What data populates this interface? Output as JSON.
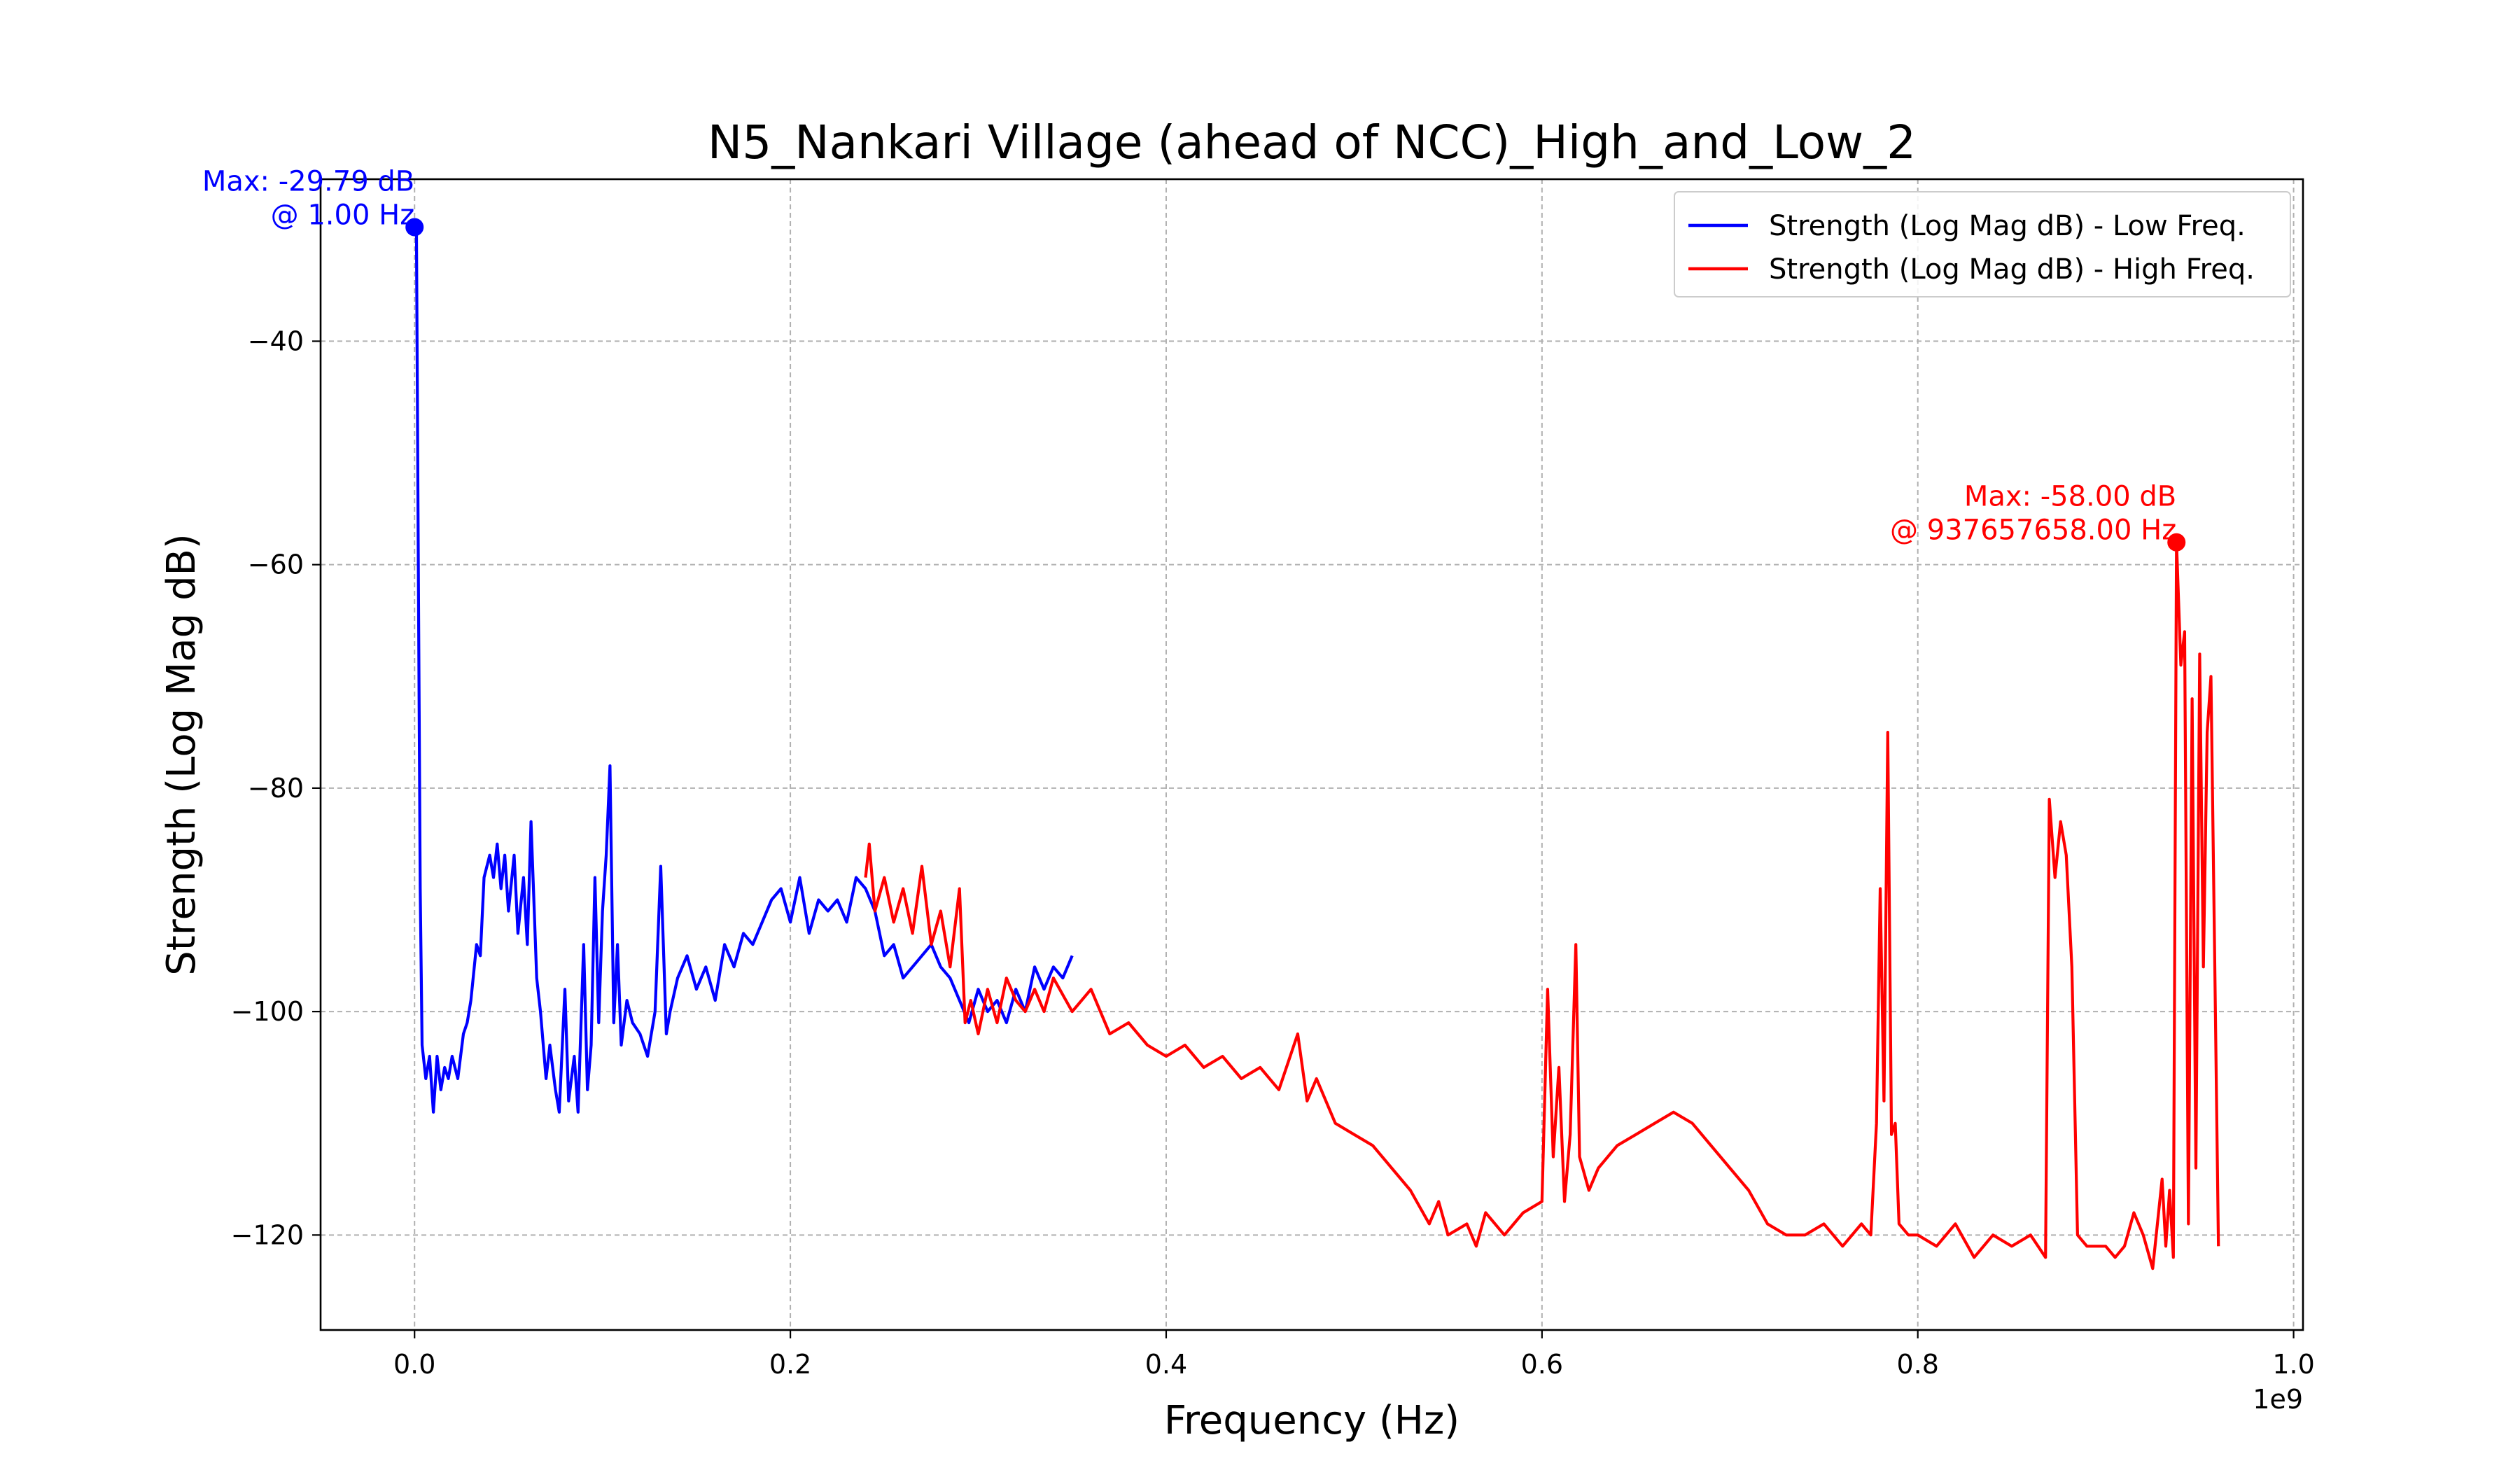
{
  "chart_data": {
    "type": "line",
    "title": "N5_Nankari Village (ahead of NCC)_High_and_Low_2",
    "xlabel": "Frequency (Hz)",
    "ylabel": "Strength (Log Mag dB)",
    "x_offset_label": "1e9",
    "x_scale": 1000000000,
    "xlim": [
      -0.05,
      1.005
    ],
    "ylim": [
      -128.5,
      -25.5
    ],
    "xticks": [
      0.0,
      0.2,
      0.4,
      0.6,
      0.8,
      1.0
    ],
    "xtick_labels": [
      "0.0",
      "0.2",
      "0.4",
      "0.6",
      "0.8",
      "1.0"
    ],
    "yticks": [
      -40,
      -60,
      -80,
      -100,
      -120
    ],
    "ytick_labels": [
      "−40",
      "−60",
      "−80",
      "−100",
      "−120"
    ],
    "grid": true,
    "legend_position": "top-right",
    "series": [
      {
        "name": "Strength (Log Mag dB) - Low Freq.",
        "color": "#0000ff",
        "x": [
          0.0,
          0.001,
          0.002,
          0.003,
          0.004,
          0.006,
          0.008,
          0.01,
          0.012,
          0.014,
          0.016,
          0.018,
          0.02,
          0.023,
          0.026,
          0.028,
          0.03,
          0.033,
          0.035,
          0.037,
          0.04,
          0.042,
          0.044,
          0.046,
          0.048,
          0.05,
          0.053,
          0.055,
          0.058,
          0.06,
          0.062,
          0.065,
          0.067,
          0.07,
          0.072,
          0.075,
          0.077,
          0.08,
          0.082,
          0.085,
          0.087,
          0.09,
          0.092,
          0.094,
          0.096,
          0.098,
          0.1,
          0.102,
          0.104,
          0.106,
          0.108,
          0.11,
          0.113,
          0.116,
          0.12,
          0.124,
          0.128,
          0.131,
          0.134,
          0.136,
          0.14,
          0.145,
          0.15,
          0.155,
          0.16,
          0.165,
          0.17,
          0.175,
          0.18,
          0.185,
          0.19,
          0.195,
          0.2,
          0.205,
          0.21,
          0.215,
          0.22,
          0.225,
          0.23,
          0.235,
          0.24,
          0.245,
          0.25,
          0.255,
          0.26,
          0.265,
          0.27,
          0.275,
          0.28,
          0.285,
          0.29,
          0.295,
          0.3,
          0.305,
          0.31,
          0.315,
          0.32,
          0.325,
          0.33,
          0.335,
          0.34,
          0.345,
          0.35
        ],
        "values": [
          -29.79,
          -29.8,
          -60,
          -89,
          -103,
          -106,
          -104,
          -109,
          -104,
          -107,
          -105,
          -106,
          -104,
          -106,
          -102,
          -101,
          -99,
          -94,
          -95,
          -88,
          -86,
          -88,
          -85,
          -89,
          -86,
          -91,
          -86,
          -93,
          -88,
          -94,
          -83,
          -97,
          -100,
          -106,
          -103,
          -107,
          -109,
          -98,
          -108,
          -104,
          -109,
          -94,
          -107,
          -103,
          -88,
          -101,
          -91,
          -86,
          -78,
          -101,
          -94,
          -103,
          -99,
          -101,
          -102,
          -104,
          -100,
          -87,
          -102,
          -100,
          -97,
          -95,
          -98,
          -96,
          -99,
          -94,
          -96,
          -93,
          -94,
          -92,
          -90,
          -89,
          -92,
          -88,
          -93,
          -90,
          -91,
          -90,
          -92,
          -88,
          -89,
          -91,
          -95,
          -94,
          -97,
          -96,
          -95,
          -94,
          -96,
          -97,
          -99,
          -101,
          -98,
          -100,
          -99,
          -101,
          -98,
          -100,
          -96,
          -98,
          -96,
          -97,
          -95
        ]
      },
      {
        "name": "Strength (Log Mag dB) - High Freq.",
        "color": "#ff0000",
        "x": [
          0.24,
          0.242,
          0.245,
          0.25,
          0.255,
          0.26,
          0.265,
          0.27,
          0.275,
          0.28,
          0.285,
          0.29,
          0.293,
          0.296,
          0.3,
          0.305,
          0.31,
          0.315,
          0.32,
          0.325,
          0.33,
          0.335,
          0.34,
          0.35,
          0.36,
          0.37,
          0.38,
          0.39,
          0.4,
          0.41,
          0.42,
          0.43,
          0.44,
          0.45,
          0.46,
          0.47,
          0.475,
          0.48,
          0.49,
          0.5,
          0.51,
          0.52,
          0.53,
          0.54,
          0.545,
          0.55,
          0.56,
          0.565,
          0.57,
          0.58,
          0.59,
          0.6,
          0.603,
          0.606,
          0.609,
          0.612,
          0.615,
          0.618,
          0.62,
          0.625,
          0.63,
          0.64,
          0.65,
          0.66,
          0.67,
          0.68,
          0.69,
          0.7,
          0.71,
          0.72,
          0.73,
          0.74,
          0.75,
          0.76,
          0.77,
          0.775,
          0.778,
          0.78,
          0.782,
          0.784,
          0.786,
          0.788,
          0.79,
          0.795,
          0.8,
          0.81,
          0.82,
          0.83,
          0.84,
          0.85,
          0.86,
          0.868,
          0.87,
          0.873,
          0.876,
          0.879,
          0.882,
          0.885,
          0.89,
          0.9,
          0.905,
          0.91,
          0.915,
          0.92,
          0.925,
          0.93,
          0.932,
          0.934,
          0.936,
          0.9377,
          0.94,
          0.942,
          0.944,
          0.946,
          0.948,
          0.95,
          0.952,
          0.954,
          0.956,
          0.958,
          0.96
        ],
        "values": [
          -88,
          -85,
          -91,
          -88,
          -92,
          -89,
          -93,
          -87,
          -94,
          -91,
          -96,
          -89,
          -101,
          -99,
          -102,
          -98,
          -101,
          -97,
          -99,
          -100,
          -98,
          -100,
          -97,
          -100,
          -98,
          -102,
          -101,
          -103,
          -104,
          -103,
          -105,
          -104,
          -106,
          -105,
          -107,
          -102,
          -108,
          -106,
          -110,
          -111,
          -112,
          -114,
          -116,
          -119,
          -117,
          -120,
          -119,
          -121,
          -118,
          -120,
          -118,
          -117,
          -98,
          -113,
          -105,
          -117,
          -111,
          -94,
          -113,
          -116,
          -114,
          -112,
          -111,
          -110,
          -109,
          -110,
          -112,
          -114,
          -116,
          -119,
          -120,
          -120,
          -119,
          -121,
          -119,
          -120,
          -110,
          -89,
          -108,
          -75,
          -111,
          -110,
          -119,
          -120,
          -120,
          -121,
          -119,
          -122,
          -120,
          -121,
          -120,
          -122,
          -81,
          -88,
          -83,
          -86,
          -96,
          -120,
          -121,
          -121,
          -122,
          -121,
          -118,
          -120,
          -123,
          -115,
          -121,
          -116,
          -122,
          -58.0,
          -69,
          -66,
          -119,
          -72,
          -114,
          -68,
          -96,
          -75,
          -70,
          -95,
          -121
        ]
      }
    ],
    "annotations": [
      {
        "text_line1": "Max: -29.79 dB",
        "text_line2": "@ 1.00 Hz",
        "x": 1e-09,
        "y": -29.79,
        "color": "#0000ff"
      },
      {
        "text_line1": "Max: -58.00 dB",
        "text_line2": "@ 937657658.00 Hz",
        "x": 0.937657658,
        "y": -58.0,
        "color": "#ff0000"
      }
    ]
  }
}
